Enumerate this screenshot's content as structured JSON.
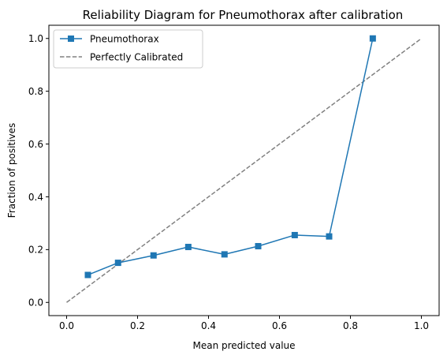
{
  "chart_data": {
    "type": "line",
    "title": "Reliability Diagram for Pneumothorax after calibration",
    "xlabel": "Mean predicted value",
    "ylabel": "Fraction of positives",
    "xlim": [
      -0.05,
      1.05
    ],
    "ylim": [
      -0.05,
      1.05
    ],
    "xticks": [
      "0.0",
      "0.2",
      "0.4",
      "0.6",
      "0.8",
      "1.0"
    ],
    "yticks": [
      "0.0",
      "0.2",
      "0.4",
      "0.6",
      "0.8",
      "1.0"
    ],
    "grid": false,
    "legend_position": "top-left",
    "series": [
      {
        "name": "Pneumothorax",
        "color": "#1f77b4",
        "marker": "square",
        "line_style": "solid",
        "x": [
          0.06,
          0.145,
          0.245,
          0.343,
          0.445,
          0.54,
          0.643,
          0.74,
          0.863
        ],
        "y": [
          0.104,
          0.15,
          0.178,
          0.21,
          0.182,
          0.213,
          0.255,
          0.25,
          1.0
        ]
      },
      {
        "name": "Perfectly Calibrated",
        "color": "#808080",
        "marker": "none",
        "line_style": "dashed",
        "x": [
          0.0,
          1.0
        ],
        "y": [
          0.0,
          1.0
        ]
      }
    ]
  }
}
